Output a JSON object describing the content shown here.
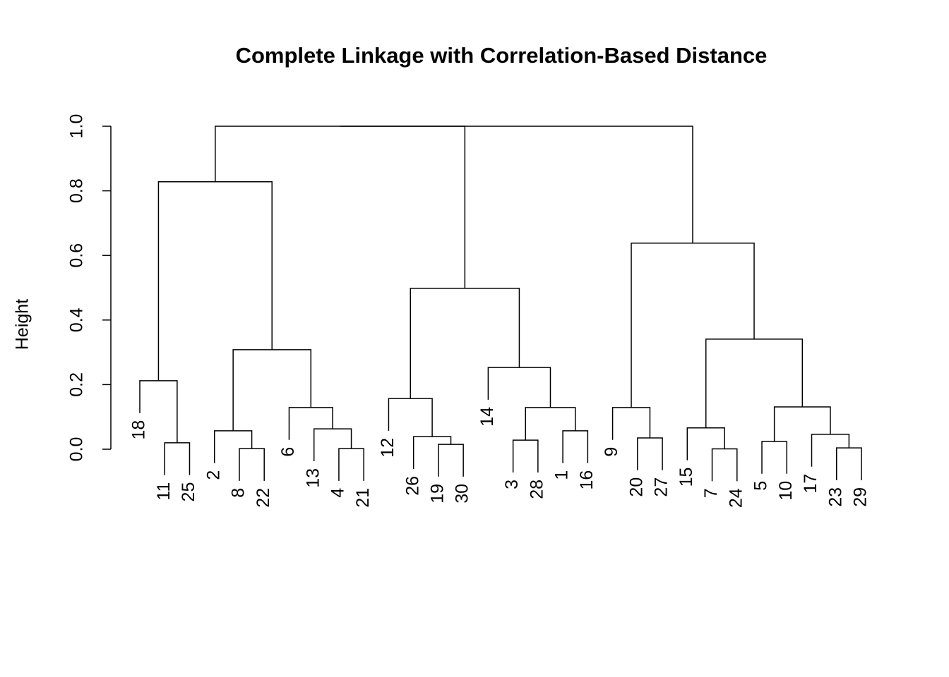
{
  "chart_data": {
    "type": "dendrogram",
    "title": "Complete Linkage with Correlation-Based Distance",
    "ylabel": "Height",
    "leaves": [
      "18",
      "11",
      "25",
      "2",
      "8",
      "22",
      "6",
      "13",
      "4",
      "21",
      "12",
      "26",
      "19",
      "30",
      "14",
      "3",
      "28",
      "1",
      "16",
      "9",
      "20",
      "27",
      "15",
      "7",
      "24",
      "5",
      "10",
      "17",
      "23",
      "29"
    ],
    "merges": [
      [
        -2,
        -3
      ],
      [
        -1,
        1
      ],
      [
        -5,
        -6
      ],
      [
        -4,
        3
      ],
      [
        -9,
        -10
      ],
      [
        -8,
        5
      ],
      [
        -7,
        6
      ],
      [
        4,
        7
      ],
      [
        2,
        8
      ],
      [
        -13,
        -14
      ],
      [
        -12,
        10
      ],
      [
        -11,
        11
      ],
      [
        -16,
        -17
      ],
      [
        -18,
        -19
      ],
      [
        13,
        14
      ],
      [
        -15,
        15
      ],
      [
        12,
        16
      ],
      [
        -21,
        -22
      ],
      [
        -20,
        18
      ],
      [
        -24,
        -25
      ],
      [
        -23,
        20
      ],
      [
        -26,
        -27
      ],
      [
        -29,
        -30
      ],
      [
        -28,
        23
      ],
      [
        22,
        24
      ],
      [
        21,
        25
      ],
      [
        19,
        26
      ],
      [
        9,
        17
      ],
      [
        28,
        27
      ]
    ],
    "heights": [
      0.02,
      0.212,
      0.002,
      0.057,
      0.002,
      0.063,
      0.129,
      0.308,
      0.828,
      0.015,
      0.039,
      0.157,
      0.028,
      0.057,
      0.129,
      0.253,
      0.498,
      0.035,
      0.129,
      0.001,
      0.066,
      0.024,
      0.004,
      0.046,
      0.131,
      0.341,
      0.638,
      1.0,
      1.0
    ],
    "hang": 0.1,
    "color": "#000000",
    "ylim": [
      0,
      1
    ],
    "yticks": [
      {
        "value": 0,
        "label": "0.0"
      },
      0.2,
      0.4,
      0.6,
      0.8,
      {
        "value": 1,
        "label": "1.0"
      }
    ]
  }
}
